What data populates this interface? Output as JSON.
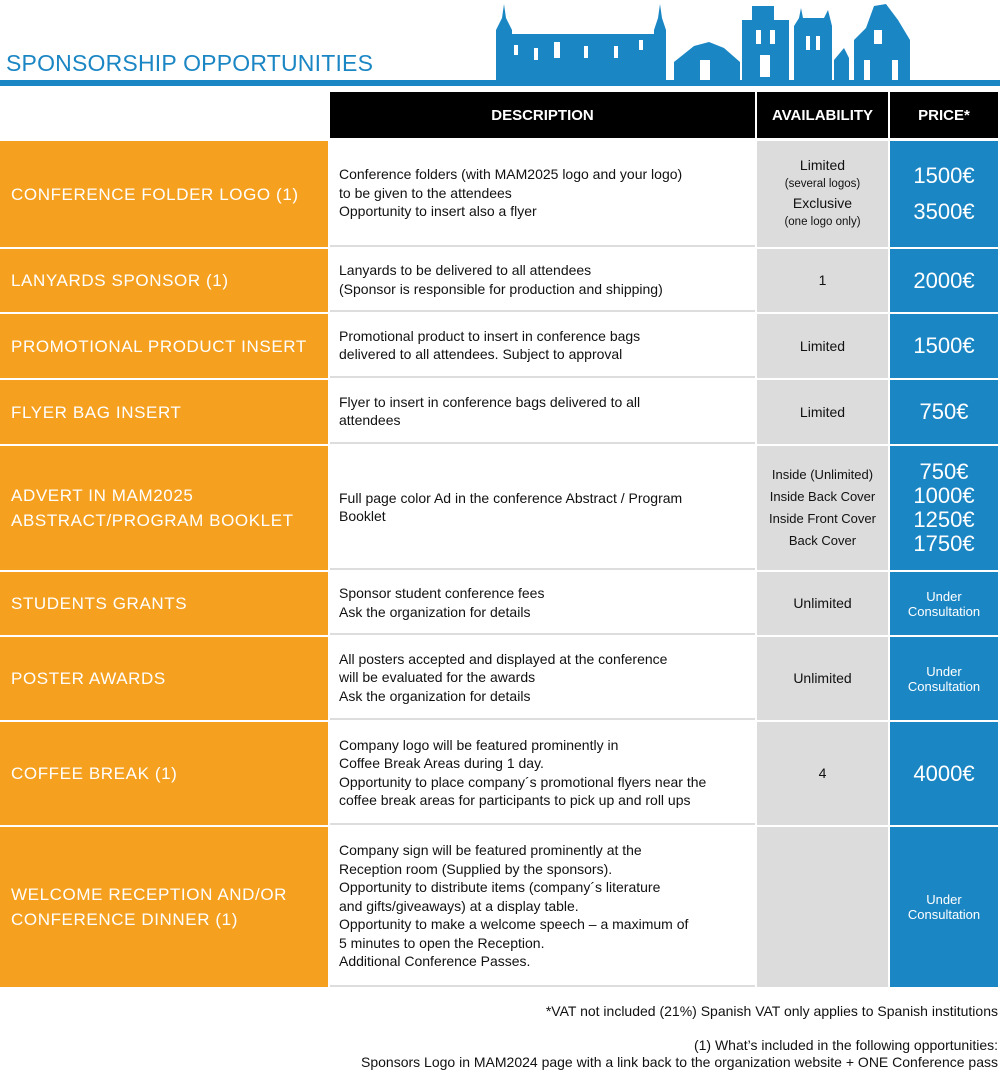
{
  "title": "SPONSORSHIP OPPORTUNITIES",
  "headers": {
    "description": "DESCRIPTION",
    "availability": "AVAILABILITY",
    "price": "PRICE*"
  },
  "colors": {
    "label_bg": "#f5a11f",
    "price_bg": "#1b86c4",
    "availability_bg": "#dcdcdc",
    "header_bg": "#000000",
    "title": "#1b86c4"
  },
  "rows": [
    {
      "label": [
        "CONFERENCE FOLDER LOGO (1)"
      ],
      "desc": [
        "Conference folders (with MAM2025 logo and your logo)",
        "to be given to the attendees",
        "Opportunity to insert also a flyer"
      ],
      "avail": [
        {
          "t": "Limited"
        },
        {
          "t": "(several logos)",
          "s": 1
        },
        {
          "t": "Exclusive"
        },
        {
          "t": "(one logo only)",
          "s": 1
        }
      ],
      "price": [
        "1500€",
        "3500€"
      ]
    },
    {
      "label": [
        "LANYARDS SPONSOR (1)"
      ],
      "desc": [
        "Lanyards to be delivered to all attendees",
        "(Sponsor is responsible for production and shipping)"
      ],
      "avail": [
        {
          "t": "1"
        }
      ],
      "price": [
        "2000€"
      ]
    },
    {
      "label": [
        "PROMOTIONAL PRODUCT INSERT"
      ],
      "desc": [
        "Promotional product to insert in conference bags",
        "delivered to all attendees. Subject to approval"
      ],
      "avail": [
        {
          "t": "Limited"
        }
      ],
      "price": [
        "1500€"
      ]
    },
    {
      "label": [
        "FLYER BAG INSERT"
      ],
      "desc": [
        "Flyer to insert in conference bags delivered to all",
        "attendees"
      ],
      "avail": [
        {
          "t": "Limited"
        }
      ],
      "price": [
        "750€"
      ]
    },
    {
      "label": [
        "ADVERT IN MAM2025",
        "ABSTRACT/PROGRAM BOOKLET"
      ],
      "desc": [
        "Full page color Ad in the  conference Abstract / Program",
        "Booklet"
      ],
      "avail": [
        {
          "t": "Inside (Unlimited)",
          "m": 1
        },
        {
          "t": "Inside Back Cover",
          "m": 1
        },
        {
          "t": "Inside Front Cover",
          "m": 1
        },
        {
          "t": "Back Cover",
          "m": 1
        }
      ],
      "price": [
        "750€",
        "1000€",
        "1250€",
        "1750€"
      ]
    },
    {
      "label": [
        "STUDENTS GRANTS"
      ],
      "desc": [
        "Sponsor student conference fees",
        "Ask the organization for details"
      ],
      "avail": [
        {
          "t": "Unlimited"
        }
      ],
      "price_uc": [
        "Under",
        "Consultation"
      ]
    },
    {
      "label": [
        "POSTER AWARDS"
      ],
      "desc": [
        "All posters accepted and displayed at the conference",
        "will be evaluated for the awards",
        "Ask the organization for details"
      ],
      "avail": [
        {
          "t": "Unlimited"
        }
      ],
      "price_uc": [
        "Under",
        "Consultation"
      ]
    },
    {
      "label": [
        "COFFEE BREAK (1)"
      ],
      "desc": [
        "Company logo will be featured prominently in",
        "Coffee Break Areas during 1 day.",
        "Opportunity to place company´s promotional flyers near the",
        "coffee break areas for participants to pick up and roll ups"
      ],
      "avail": [
        {
          "t": "4"
        }
      ],
      "price": [
        "4000€"
      ]
    },
    {
      "label": [
        "WELCOME RECEPTION AND/OR",
        "CONFERENCE DINNER (1)"
      ],
      "desc": [
        "Company sign will be featured prominently at the",
        "Reception room (Supplied by the sponsors).",
        "Opportunity to distribute items (company´s literature",
        "and gifts/giveaways) at a display table.",
        "Opportunity to make a welcome speech – a maximum of",
        "5 minutes to open the Reception.",
        "Additional Conference Passes."
      ],
      "avail": [],
      "price_uc": [
        "Under",
        "Consultation"
      ]
    }
  ],
  "footnotes": {
    "vat": "*VAT not included (21%) Spanish VAT only applies to Spanish institutions",
    "note1": "(1) What’s included in the following opportunities:",
    "note2": "Sponsors Logo in MAM2024 page with a link back to the organization website + ONE Conference pass"
  }
}
